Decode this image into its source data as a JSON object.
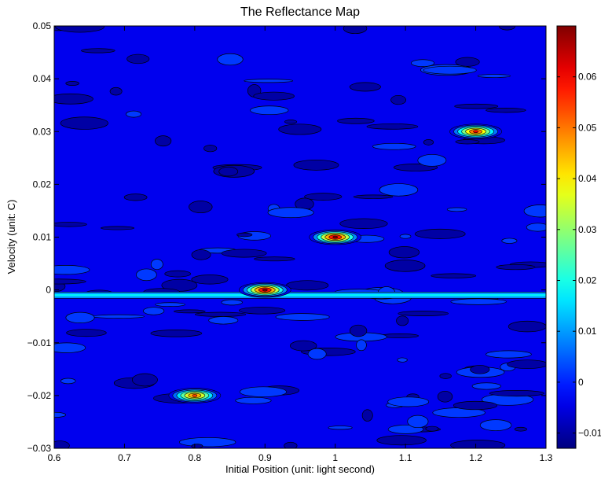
{
  "chart_data": {
    "type": "heatmap",
    "title": "The Reflectance Map",
    "xlabel": "Initial Position (unit: light second)",
    "ylabel": "Velocity (unit: C)",
    "xlim": [
      0.6,
      1.3
    ],
    "ylim": [
      -0.03,
      0.05
    ],
    "x_ticks": [
      0.6,
      0.7,
      0.8,
      0.9,
      1.0,
      1.1,
      1.2,
      1.3
    ],
    "x_tick_labels": [
      "0.6",
      "0.7",
      "0.8",
      "0.9",
      "1",
      "1.1",
      "1.2",
      "1.3"
    ],
    "y_ticks": [
      -0.03,
      -0.02,
      -0.01,
      0,
      0.01,
      0.02,
      0.03,
      0.04,
      0.05
    ],
    "y_tick_labels": [
      "−0.03",
      "−0.02",
      "−0.01",
      "0",
      "0.01",
      "0.02",
      "0.03",
      "0.04",
      "0.05"
    ],
    "colorbar": {
      "range": [
        -0.013,
        0.07
      ],
      "ticks": [
        -0.01,
        0,
        0.01,
        0.02,
        0.03,
        0.04,
        0.05,
        0.06
      ],
      "tick_labels": [
        "−0.01",
        "0",
        "0.01",
        "0.02",
        "0.03",
        "0.04",
        "0.05",
        "0.06"
      ],
      "colormap": "jet"
    },
    "background_level": -0.004,
    "peaks": [
      {
        "x": 0.9,
        "y": 0.0,
        "value": 0.07
      },
      {
        "x": 1.0,
        "y": 0.01,
        "value": 0.07
      },
      {
        "x": 1.2,
        "y": 0.03,
        "value": 0.06
      },
      {
        "x": 0.8,
        "y": -0.02,
        "value": 0.055
      }
    ],
    "ridge": {
      "y": -0.001,
      "value": 0.017
    }
  }
}
